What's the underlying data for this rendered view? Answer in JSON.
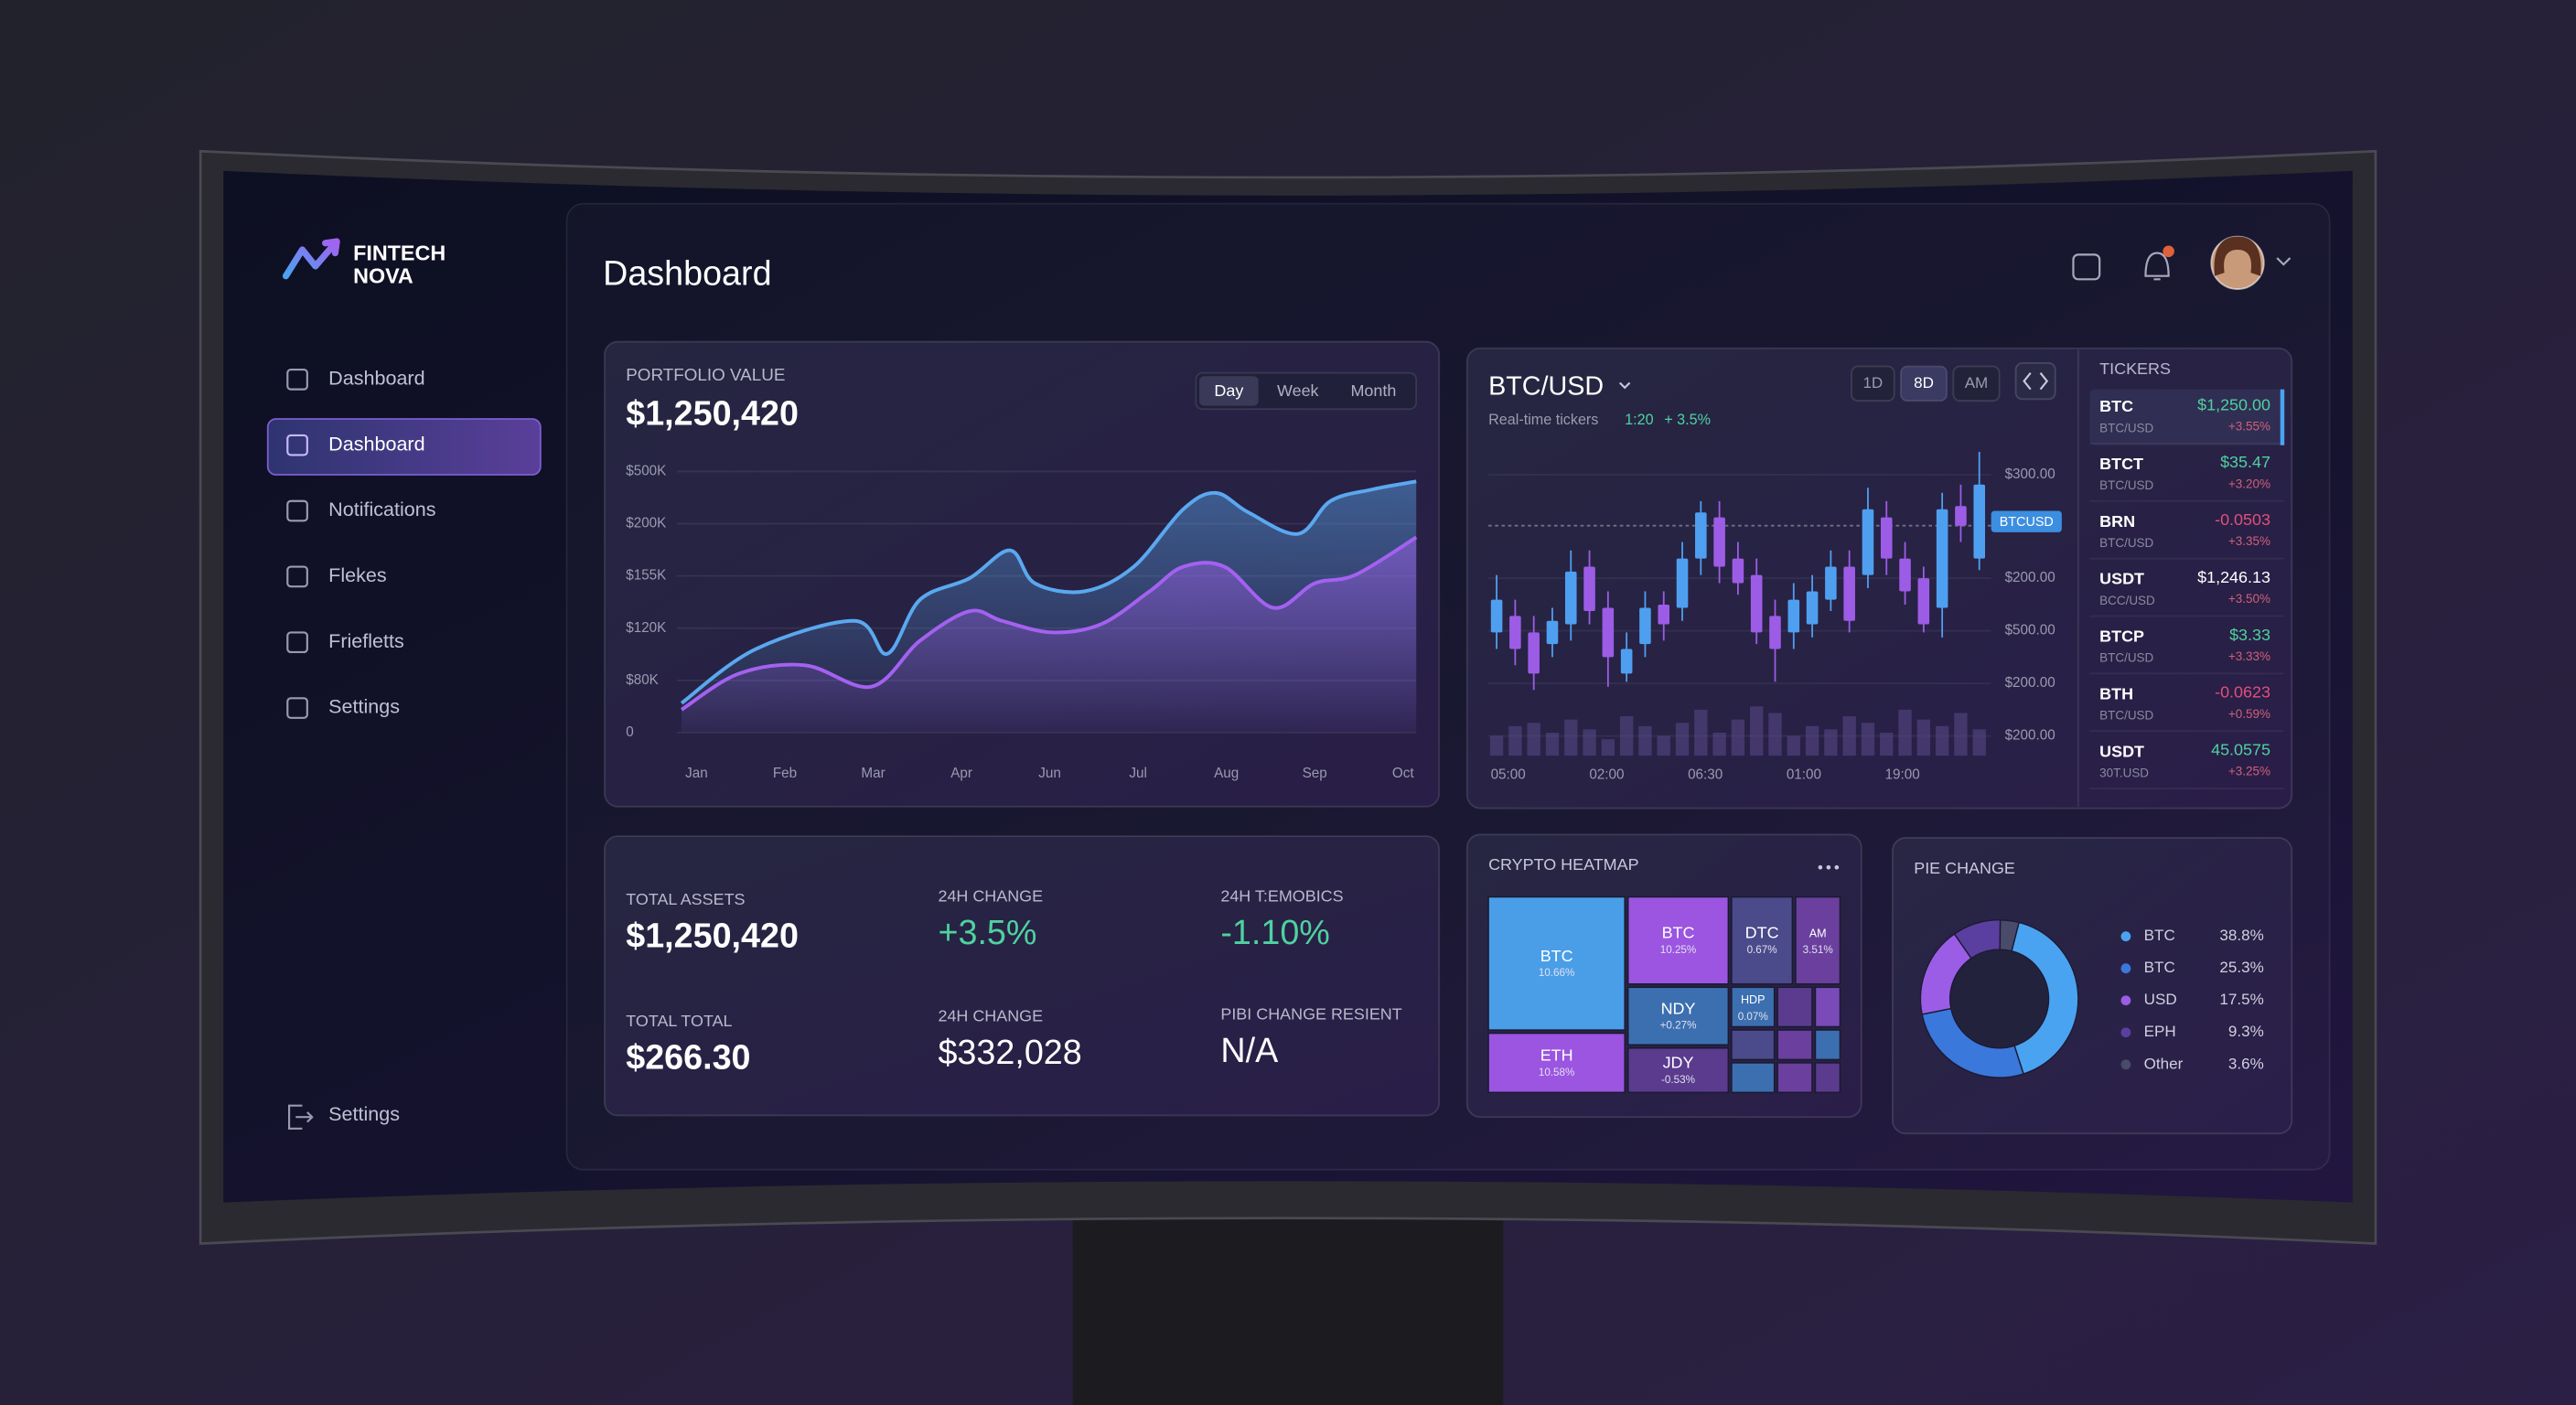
{
  "brand": {
    "line1": "FINTECH",
    "line2": "NOVA"
  },
  "sidebar": {
    "items": [
      "Dashboard",
      "Dashboard",
      "Notifications",
      "Flekes",
      "Friefletts",
      "Settings"
    ],
    "active": 1,
    "footer": "Settings"
  },
  "header": {
    "title": "Dashboard"
  },
  "portfolio": {
    "label": "PORTFOLIO VALUE",
    "value": "$1,250,420",
    "tabs": [
      "Day",
      "Week",
      "Month"
    ],
    "active_tab": 0,
    "chart": {
      "type": "line",
      "y_labels": [
        "$500K",
        "$200K",
        "$155K",
        "$120K",
        "$80K",
        "0"
      ],
      "ylim": [
        0,
        100
      ],
      "categories": [
        "Jan",
        "Feb",
        "Mar",
        "Apr",
        "Jun",
        "Jul",
        "Aug",
        "Sep",
        "Oct"
      ],
      "xlim": [
        -0.2,
        8.2
      ],
      "series": [
        {
          "color": "#5aa8f0",
          "x": [
            -0.17,
            0.67,
            1.79,
            2.16,
            2.53,
            3.09,
            3.55,
            3.83,
            4.39,
            4.95,
            5.51,
            5.88,
            6.25,
            6.81,
            7.18,
            7.65,
            8.15
          ],
          "values": [
            11.3,
            32,
            42.8,
            30.2,
            50.9,
            59.1,
            69.8,
            57.2,
            54.1,
            63.5,
            85.5,
            91.8,
            84.3,
            76.1,
            88.7,
            93.1,
            96.2
          ]
        },
        {
          "color": "#a461f0",
          "x": [
            -0.17,
            0.48,
            1.23,
            1.98,
            2.53,
            3.09,
            3.46,
            4.02,
            4.58,
            5.13,
            5.51,
            5.98,
            6.53,
            7.0,
            7.46,
            8.15
          ],
          "values": [
            8.8,
            22.6,
            25.8,
            17.6,
            35.2,
            46.5,
            42.8,
            38.4,
            41.5,
            54.1,
            63.5,
            63.5,
            47.8,
            57.2,
            60.4,
            74.8
          ]
        }
      ]
    }
  },
  "market": {
    "title": "BTC/USD",
    "subtitle": "Real-time tickers",
    "stat1": "1:20",
    "stat2": "+ 3.5%",
    "ranges": [
      "1D",
      "8D",
      "AM"
    ],
    "active_range": 1,
    "tag": "BTCUSD",
    "chart": {
      "type": "candlestick",
      "ylim": [
        0,
        110
      ],
      "y_labels": [
        "$300.00",
        "$200.00",
        "$500.00",
        "$200.00",
        "$200.00"
      ],
      "x_labels": [
        "05:00",
        "02:00",
        "06:30",
        "01:00",
        "19:00"
      ],
      "up_color": "#4f9ff0",
      "down_color": "#9d5ce6",
      "candles": [
        [
          30,
          53.3,
          23.3,
          43.3
        ],
        [
          36.7,
          43.3,
          16.7,
          23.3
        ],
        [
          30,
          36.7,
          6.7,
          13.3
        ],
        [
          25.3,
          40,
          20,
          34.7
        ],
        [
          33.3,
          63.3,
          26.7,
          54.7
        ],
        [
          56.7,
          63.3,
          33.3,
          38.7
        ],
        [
          40,
          46.7,
          8,
          20
        ],
        [
          13.3,
          30,
          10,
          23.3
        ],
        [
          25.3,
          46.7,
          20,
          40
        ],
        [
          41.3,
          46.7,
          26.7,
          33.3
        ],
        [
          40,
          66.7,
          34.7,
          60
        ],
        [
          60,
          83.3,
          53.3,
          78.7
        ],
        [
          76.7,
          83.3,
          50,
          56.7
        ],
        [
          60,
          66.7,
          45.3,
          50
        ],
        [
          53.3,
          60,
          25.3,
          30
        ],
        [
          36.7,
          43.3,
          10,
          23.3
        ],
        [
          30,
          50,
          23.3,
          43.3
        ],
        [
          33.3,
          53.3,
          28,
          46.7
        ],
        [
          43.3,
          63.3,
          38.7,
          56.7
        ],
        [
          56.7,
          63.3,
          30,
          34.7
        ],
        [
          53.3,
          88.7,
          48,
          80
        ],
        [
          76.7,
          83.3,
          53.3,
          60
        ],
        [
          60,
          66.7,
          41.3,
          46.7
        ],
        [
          52,
          56.7,
          30,
          33.3
        ],
        [
          40,
          86.7,
          28,
          80
        ],
        [
          81.3,
          90,
          66.7,
          73.3
        ],
        [
          60,
          103.3,
          55.3,
          90
        ]
      ],
      "volume_ylim": [
        0,
        40
      ],
      "volume": [
        12,
        18,
        20,
        14,
        22,
        16,
        10,
        24,
        18,
        12,
        20,
        28,
        14,
        22,
        30,
        26,
        12,
        18,
        16,
        24,
        20,
        14,
        28,
        22,
        18,
        26,
        16
      ]
    },
    "tickers": {
      "title": "TICKERS",
      "rows": [
        {
          "symbol": "BTC",
          "pair": "BTC/USD",
          "price": "$1,250.00",
          "change": "+3.55%",
          "price_color": "#4fd1a0"
        },
        {
          "symbol": "BTCT",
          "pair": "BTC/USD",
          "price": "$35.47",
          "change": "+3.20%",
          "price_color": "#4fd1a0"
        },
        {
          "symbol": "BRN",
          "pair": "BTC/USD",
          "price": "-0.0503",
          "change": "+3.35%",
          "price_color": "#e0507a"
        },
        {
          "symbol": "USDT",
          "pair": "BCC/USD",
          "price": "$1,246.13",
          "change": "+3.50%",
          "price_color": "#ffffff"
        },
        {
          "symbol": "BTCP",
          "pair": "BTC/USD",
          "price": "$3.33",
          "change": "+3.33%",
          "price_color": "#4fd1a0"
        },
        {
          "symbol": "BTH",
          "pair": "BTC/USD",
          "price": "-0.0623",
          "change": "+0.59%",
          "price_color": "#e0507a"
        },
        {
          "symbol": "USDT",
          "pair": "30T.USD",
          "price": "45.0575",
          "change": "+3.25%",
          "price_color": "#4fd1a0"
        }
      ]
    }
  },
  "stats": {
    "cells": [
      {
        "label": "TOTAL ASSETS",
        "value": "$1,250,420",
        "color": "#ffffff"
      },
      {
        "label": "24H CHANGE",
        "value": "+3.5%",
        "color": "#4fd1a0"
      },
      {
        "label": "24H T:EMOBICS",
        "value": "-1.10%",
        "color": "#4fd1a0"
      },
      {
        "label": "TOTAL TOTAL",
        "value": "$266.30",
        "color": "#ffffff"
      },
      {
        "label": "24H CHANGE",
        "value": "$332,028",
        "color": "#ffffff"
      },
      {
        "label": "PIBI CHANGE RESIENT",
        "value": "N/A",
        "color": "#ffffff"
      }
    ]
  },
  "heatmap": {
    "title": "CRYPTO HEATMAP",
    "cells": [
      {
        "name": "BTC",
        "change": "10.66%"
      },
      {
        "name": "BTC",
        "change": "10.25%"
      },
      {
        "name": "DTC",
        "change": "0.67%"
      },
      {
        "name": "AM",
        "change": "3.51%"
      },
      {
        "name": "NDY",
        "change": "+0.27%"
      },
      {
        "name": "HDP",
        "change": "0.07%"
      },
      {
        "name": "ETH",
        "change": "10.58%"
      },
      {
        "name": "JDY",
        "change": "-0.53%"
      }
    ]
  },
  "pie": {
    "type": "pie",
    "title": "PIE CHANGE",
    "labels": [
      "BTC",
      "BTC",
      "USD",
      "EPH",
      "Other"
    ],
    "values": [
      38.8,
      25.3,
      17.5,
      9.3,
      3.6
    ],
    "value_labels": [
      "38.8%",
      "25.3%",
      "17.5%",
      "9.3%",
      "3.6%"
    ],
    "colors": [
      "#4aa3f0",
      "#3a78dc",
      "#9b5de5",
      "#5b3fa0",
      "#4a4a6a"
    ]
  }
}
